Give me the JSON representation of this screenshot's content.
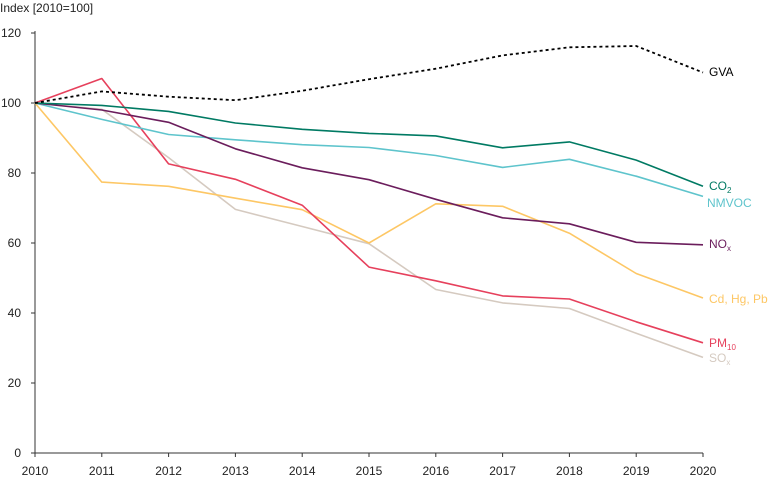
{
  "chart_data": {
    "type": "line",
    "ylabel": "Index [2010=100]",
    "x": [
      2010,
      2011,
      2012,
      2013,
      2014,
      2015,
      2016,
      2017,
      2018,
      2019,
      2020
    ],
    "xticks": [
      "2010",
      "2011",
      "2012",
      "2013",
      "2014",
      "2015",
      "2016",
      "2017",
      "2018",
      "2019",
      "2020"
    ],
    "ylim": [
      0,
      120
    ],
    "yticks": [
      "0",
      "20",
      "40",
      "60",
      "80",
      "100",
      "120"
    ],
    "grid": false,
    "legend": "inline labels at line ends",
    "series": [
      {
        "name": "GVA",
        "label_main": "GVA",
        "label_sub": "",
        "color": "#000000",
        "dash": "dotted",
        "values": [
          100,
          103.3,
          101.8,
          100.8,
          103.5,
          106.8,
          109.8,
          113.6,
          115.9,
          116.3,
          108.7
        ]
      },
      {
        "name": "CO2",
        "label_main": "CO",
        "label_sub": "2",
        "color": "#007a63",
        "dash": "solid",
        "values": [
          100,
          99.3,
          97.6,
          94.3,
          92.5,
          91.3,
          90.6,
          87.2,
          88.9,
          83.7,
          76.2
        ]
      },
      {
        "name": "NMVOC",
        "label_main": "NMVOC",
        "label_sub": "",
        "color": "#5ec4cc",
        "dash": "solid",
        "values": [
          100,
          95.3,
          91,
          89.5,
          88.1,
          87.3,
          85,
          81.6,
          83.9,
          79.1,
          73.3
        ]
      },
      {
        "name": "NOx",
        "label_main": "NO",
        "label_sub": "x",
        "color": "#6b1d5c",
        "dash": "solid",
        "values": [
          100,
          98,
          94.5,
          86.9,
          81.5,
          78.1,
          72.5,
          67.2,
          65.5,
          60.2,
          59.5
        ]
      },
      {
        "name": "Cd, Hg, Pb",
        "label_main": "Cd, Hg, Pb",
        "label_sub": "",
        "color": "#fdc765",
        "dash": "solid",
        "values": [
          100,
          77.4,
          76.2,
          72.8,
          69.5,
          60,
          71.2,
          70.5,
          62.8,
          51.3,
          44.3
        ]
      },
      {
        "name": "PM10",
        "label_main": "PM",
        "label_sub": "10",
        "color": "#e6405c",
        "dash": "solid",
        "values": [
          100,
          107,
          82.6,
          78.2,
          70.8,
          53.1,
          49.2,
          44.9,
          44,
          37.5,
          31.5
        ]
      },
      {
        "name": "SOx",
        "label_main": "SO",
        "label_sub": "x",
        "color": "#d5cac0",
        "dash": "solid",
        "values": [
          100,
          98.2,
          84.4,
          69.6,
          64.7,
          59.8,
          46.7,
          42.9,
          41.3,
          34.2,
          27.3
        ]
      }
    ]
  }
}
